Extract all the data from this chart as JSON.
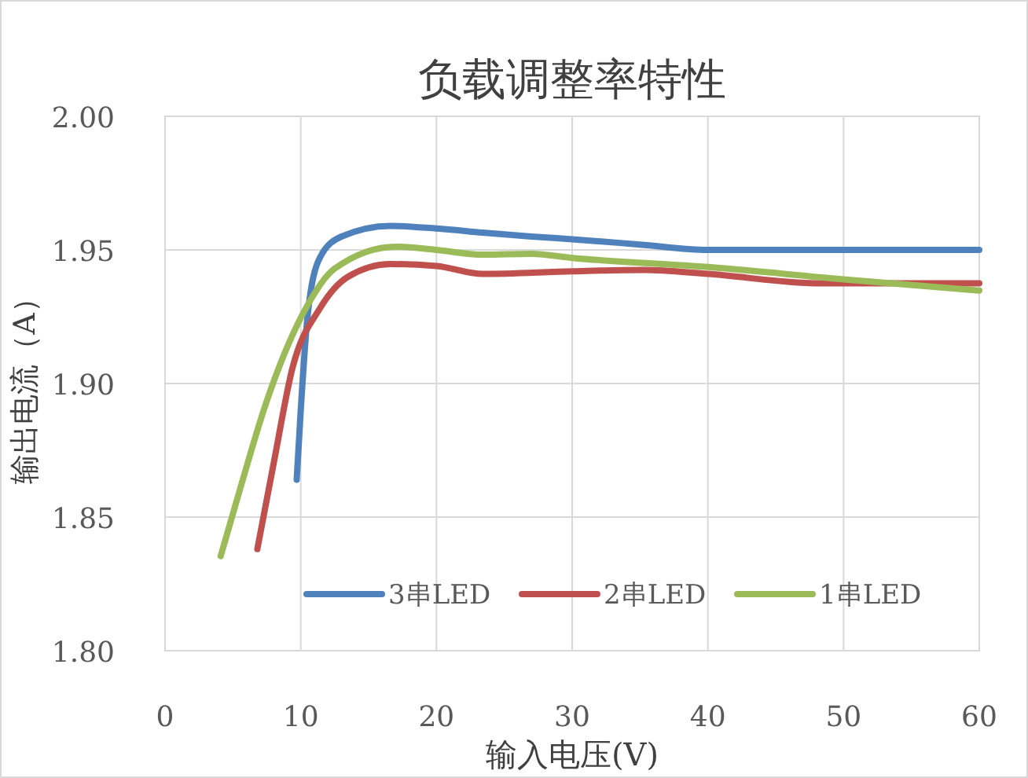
{
  "chart_data": {
    "type": "line",
    "title": "负载调整率特性",
    "xlabel": "输入电压(V)",
    "ylabel": "输出电流（A）",
    "xlim": [
      0,
      60
    ],
    "xticks": [
      0,
      10,
      20,
      30,
      40,
      50,
      60
    ],
    "ylim": [
      1.8,
      2.0
    ],
    "yticks": [
      {
        "value": 1.8,
        "label": "1.80"
      },
      1.85,
      {
        "value": 1.9,
        "label": "1.90"
      },
      1.95,
      {
        "value": 2.0,
        "label": "2.00"
      }
    ],
    "grid": true,
    "legend": "bottom",
    "line_style": "solid",
    "marker": "none",
    "series": [
      {
        "name": "3串LED",
        "color": "#4f81bd",
        "x": [
          9.7,
          10.0,
          10.5,
          11.4,
          13,
          16.6,
          20,
          23.4,
          27,
          30,
          35,
          40,
          50,
          60
        ],
        "values": [
          1.864,
          1.89,
          1.925,
          1.947,
          1.955,
          1.959,
          1.958,
          1.9565,
          1.955,
          1.954,
          1.952,
          1.95,
          1.95,
          1.95
        ]
      },
      {
        "name": "2串LED",
        "color": "#c0504d",
        "x": [
          6.8,
          8,
          9.4,
          11.4,
          13.5,
          16.6,
          20,
          23.4,
          30,
          35.3,
          40,
          48.2,
          60
        ],
        "values": [
          1.838,
          1.87,
          1.906,
          1.928,
          1.94,
          1.9447,
          1.944,
          1.941,
          1.942,
          1.9425,
          1.941,
          1.9375,
          1.9375
        ]
      },
      {
        "name": "1串LED",
        "color": "#9bbb59",
        "x": [
          4.1,
          5.5,
          7.4,
          10.2,
          12.5,
          17,
          20,
          23.4,
          27,
          30,
          40.2,
          50,
          60
        ],
        "values": [
          1.8354,
          1.86,
          1.892,
          1.9265,
          1.943,
          1.9512,
          1.95,
          1.9482,
          1.9485,
          1.947,
          1.9435,
          1.939,
          1.9348
        ]
      }
    ]
  }
}
